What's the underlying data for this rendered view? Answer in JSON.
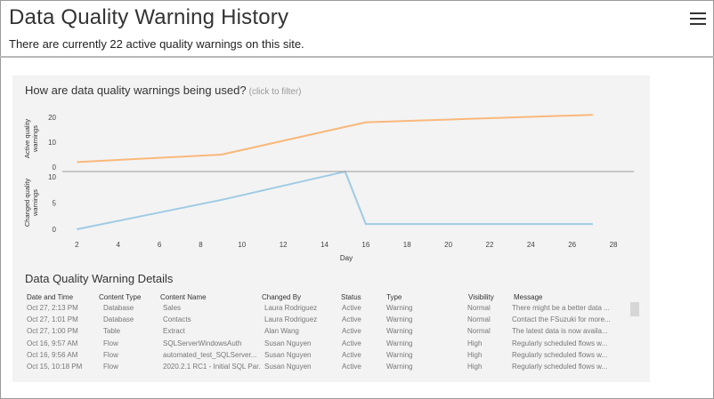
{
  "page": {
    "title": "Data Quality Warning History",
    "subtitle": "There are currently 22 active quality warnings on this site.",
    "menu_icon": "hamburger-menu-icon"
  },
  "chart": {
    "title": "How are data quality warnings being used?",
    "hint": "(click to filter)"
  },
  "chart_data": {
    "type": "line",
    "xlabel": "Day",
    "xlim": [
      1,
      28
    ],
    "xticks": [
      2,
      4,
      6,
      8,
      10,
      12,
      14,
      16,
      18,
      20,
      22,
      24,
      26,
      28
    ],
    "panels": [
      {
        "ylabel": "Active quality warnings",
        "ylim": [
          0,
          23
        ],
        "yticks": [
          0,
          10,
          20
        ],
        "series": [
          {
            "color": "#f9b87a",
            "x": [
              2,
              9,
              16,
              27
            ],
            "y": [
              2,
              5,
              18,
              21
            ]
          }
        ]
      },
      {
        "ylabel": "Changed quality warnings",
        "ylim": [
          0,
          10.5
        ],
        "yticks": [
          0,
          5,
          10
        ],
        "series": [
          {
            "color": "#9fcbe5",
            "x": [
              2,
              9,
              15,
              16,
              27
            ],
            "y": [
              0,
              5.6,
              11,
              1,
              1
            ]
          }
        ]
      }
    ]
  },
  "details": {
    "title": "Data Quality Warning Details",
    "columns": [
      "Date and Time",
      "Content Type",
      "Content Name",
      "Changed By",
      "Status",
      "Type",
      "Visibility",
      "Message"
    ],
    "rows": [
      [
        "Oct 27, 2:13 PM",
        "Database",
        "Sales",
        "Laura Rodriguez",
        "Active",
        "Warning",
        "Normal",
        "There might be a better data ..."
      ],
      [
        "Oct 27, 1:01 PM",
        "Database",
        "Contacts",
        "Laura Rodriguez",
        "Active",
        "Warning",
        "Normal",
        "Contact the FSuzuki for more..."
      ],
      [
        "Oct 27, 1:00 PM",
        "Table",
        "Extract",
        "Alan Wang",
        "Active",
        "Warning",
        "Normal",
        "The latest data is now availa..."
      ],
      [
        "Oct 16, 9:57 AM",
        "Flow",
        "SQLServerWindowsAuth",
        "Susan Nguyen",
        "Active",
        "Warning",
        "High",
        "Regularly scheduled flows w..."
      ],
      [
        "Oct 16, 9:56 AM",
        "Flow",
        "automated_test_SQLServer...",
        "Susan Nguyen",
        "Active",
        "Warning",
        "High",
        "Regularly scheduled flows w..."
      ],
      [
        "Oct 15, 10:18 PM",
        "Flow",
        "2020.2.1 RC1 - Initial SQL Par...",
        "Susan Nguyen",
        "Active",
        "Warning",
        "High",
        "Regularly scheduled flows w..."
      ]
    ]
  }
}
